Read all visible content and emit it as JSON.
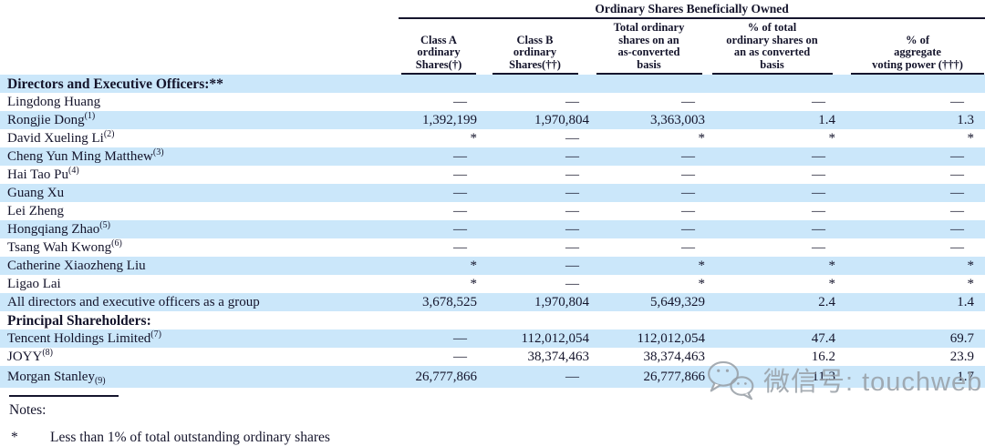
{
  "table": {
    "spanning_header": "Ordinary Shares Beneficially Owned",
    "columns": [
      {
        "lines": [
          "Class A",
          "ordinary",
          "Shares(†)"
        ]
      },
      {
        "lines": [
          "Class B",
          "ordinary",
          "Shares(††)"
        ]
      },
      {
        "lines": [
          "Total ordinary",
          "shares on an",
          "as-converted",
          "basis"
        ]
      },
      {
        "lines": [
          "% of total",
          "ordinary shares on",
          "an as converted",
          "basis"
        ]
      },
      {
        "lines": [
          "% of",
          "aggregate",
          "voting power (†††)"
        ]
      }
    ],
    "rows": [
      {
        "name": "Directors and Executive Officers:**",
        "bold": true,
        "values": [
          "",
          "",
          "",
          "",
          ""
        ]
      },
      {
        "name": "Lingdong Huang",
        "values": [
          "—",
          "—",
          "—",
          "—",
          "—"
        ]
      },
      {
        "name": "Rongjie Dong",
        "sup": "(1)",
        "values": [
          "1,392,199",
          "1,970,804",
          "3,363,003",
          "1.4",
          "1.3"
        ]
      },
      {
        "name": "David Xueling Li",
        "sup": "(2)",
        "values": [
          "*",
          "—",
          "*",
          "*",
          "*"
        ]
      },
      {
        "name": "Cheng Yun Ming Matthew",
        "sup": "(3)",
        "values": [
          "—",
          "—",
          "—",
          "—",
          "—"
        ]
      },
      {
        "name": "Hai Tao Pu",
        "sup": "(4)",
        "values": [
          "—",
          "—",
          "—",
          "—",
          "—"
        ]
      },
      {
        "name": "Guang Xu",
        "values": [
          "—",
          "—",
          "—",
          "—",
          "—"
        ]
      },
      {
        "name": "Lei Zheng",
        "values": [
          "—",
          "—",
          "—",
          "—",
          "—"
        ]
      },
      {
        "name": "Hongqiang Zhao",
        "sup": "(5)",
        "values": [
          "—",
          "—",
          "—",
          "—",
          "—"
        ]
      },
      {
        "name": "Tsang Wah Kwong",
        "sup": "(6)",
        "values": [
          "—",
          "—",
          "—",
          "—",
          "—"
        ]
      },
      {
        "name": "Catherine Xiaozheng Liu",
        "values": [
          "*",
          "—",
          "*",
          "*",
          "*"
        ]
      },
      {
        "name": "Ligao Lai",
        "values": [
          "*",
          "—",
          "*",
          "*",
          "*"
        ]
      },
      {
        "name": "All directors and executive officers as a group",
        "values": [
          "3,678,525",
          "1,970,804",
          "5,649,329",
          "2.4",
          "1.4"
        ]
      },
      {
        "name": "Principal Shareholders:",
        "bold": true,
        "values": [
          "",
          "",
          "",
          "",
          ""
        ]
      },
      {
        "name": "Tencent Holdings Limited",
        "sup": "(7)",
        "values": [
          "—",
          "112,012,054",
          "112,012,054",
          "47.4",
          "69.7"
        ]
      },
      {
        "name": "JOYY",
        "sup": "(8)",
        "values": [
          "—",
          "38,374,463",
          "38,374,463",
          "16.2",
          "23.9"
        ]
      },
      {
        "name": "Morgan Stanley",
        "sub": "(9)",
        "values": [
          "26,777,866",
          "—",
          "26,777,866",
          "11.3",
          "1.7"
        ]
      }
    ]
  },
  "notes": {
    "label": "Notes:",
    "footnote_marker": "*",
    "footnote_text": "Less than 1% of total outstanding ordinary shares"
  },
  "watermark": {
    "icon": "wechat-icon",
    "text": "微信号: touchweb"
  },
  "colors": {
    "row_highlight": "#cbe7fa",
    "text": "#14142b",
    "rule": "#15152d",
    "watermark_gray": "#969da5"
  }
}
